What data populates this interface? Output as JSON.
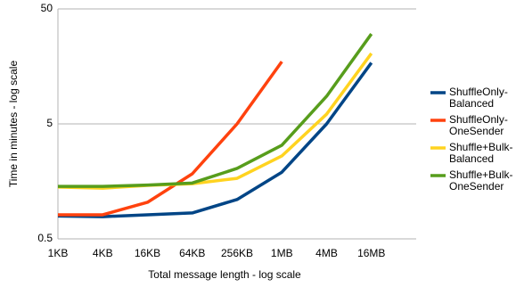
{
  "chart_data": {
    "type": "line",
    "x_label": "Total message length - log scale",
    "y_label": "Time in minutes - log scale",
    "categories": [
      "1KB",
      "4KB",
      "16KB",
      "64KB",
      "256KB",
      "1MB",
      "4MB",
      "16MB"
    ],
    "y_scale": "log",
    "ylim": [
      0.5,
      50
    ],
    "yticks": [
      0.5,
      5,
      50
    ],
    "grid": true,
    "legend": "right",
    "series": [
      {
        "name": "ShuffleOnly-Balanced",
        "color": "#004586",
        "values": [
          0.79,
          0.78,
          0.81,
          0.84,
          1.1,
          1.9,
          5,
          17
        ]
      },
      {
        "name": "ShuffleOnly-OneSender",
        "color": "#ff420e",
        "values": [
          0.81,
          0.81,
          1.04,
          1.84,
          5,
          17.4,
          null,
          null
        ]
      },
      {
        "name": "Shuffle+Bulk-Balanced",
        "color": "#ffd320",
        "values": [
          1.41,
          1.38,
          1.46,
          1.51,
          1.68,
          2.63,
          6.08,
          20.5
        ]
      },
      {
        "name": "Shuffle+Bulk-OneSender",
        "color": "#579d1c",
        "values": [
          1.43,
          1.43,
          1.47,
          1.53,
          2.05,
          3.26,
          8.7,
          30.3
        ]
      }
    ]
  }
}
